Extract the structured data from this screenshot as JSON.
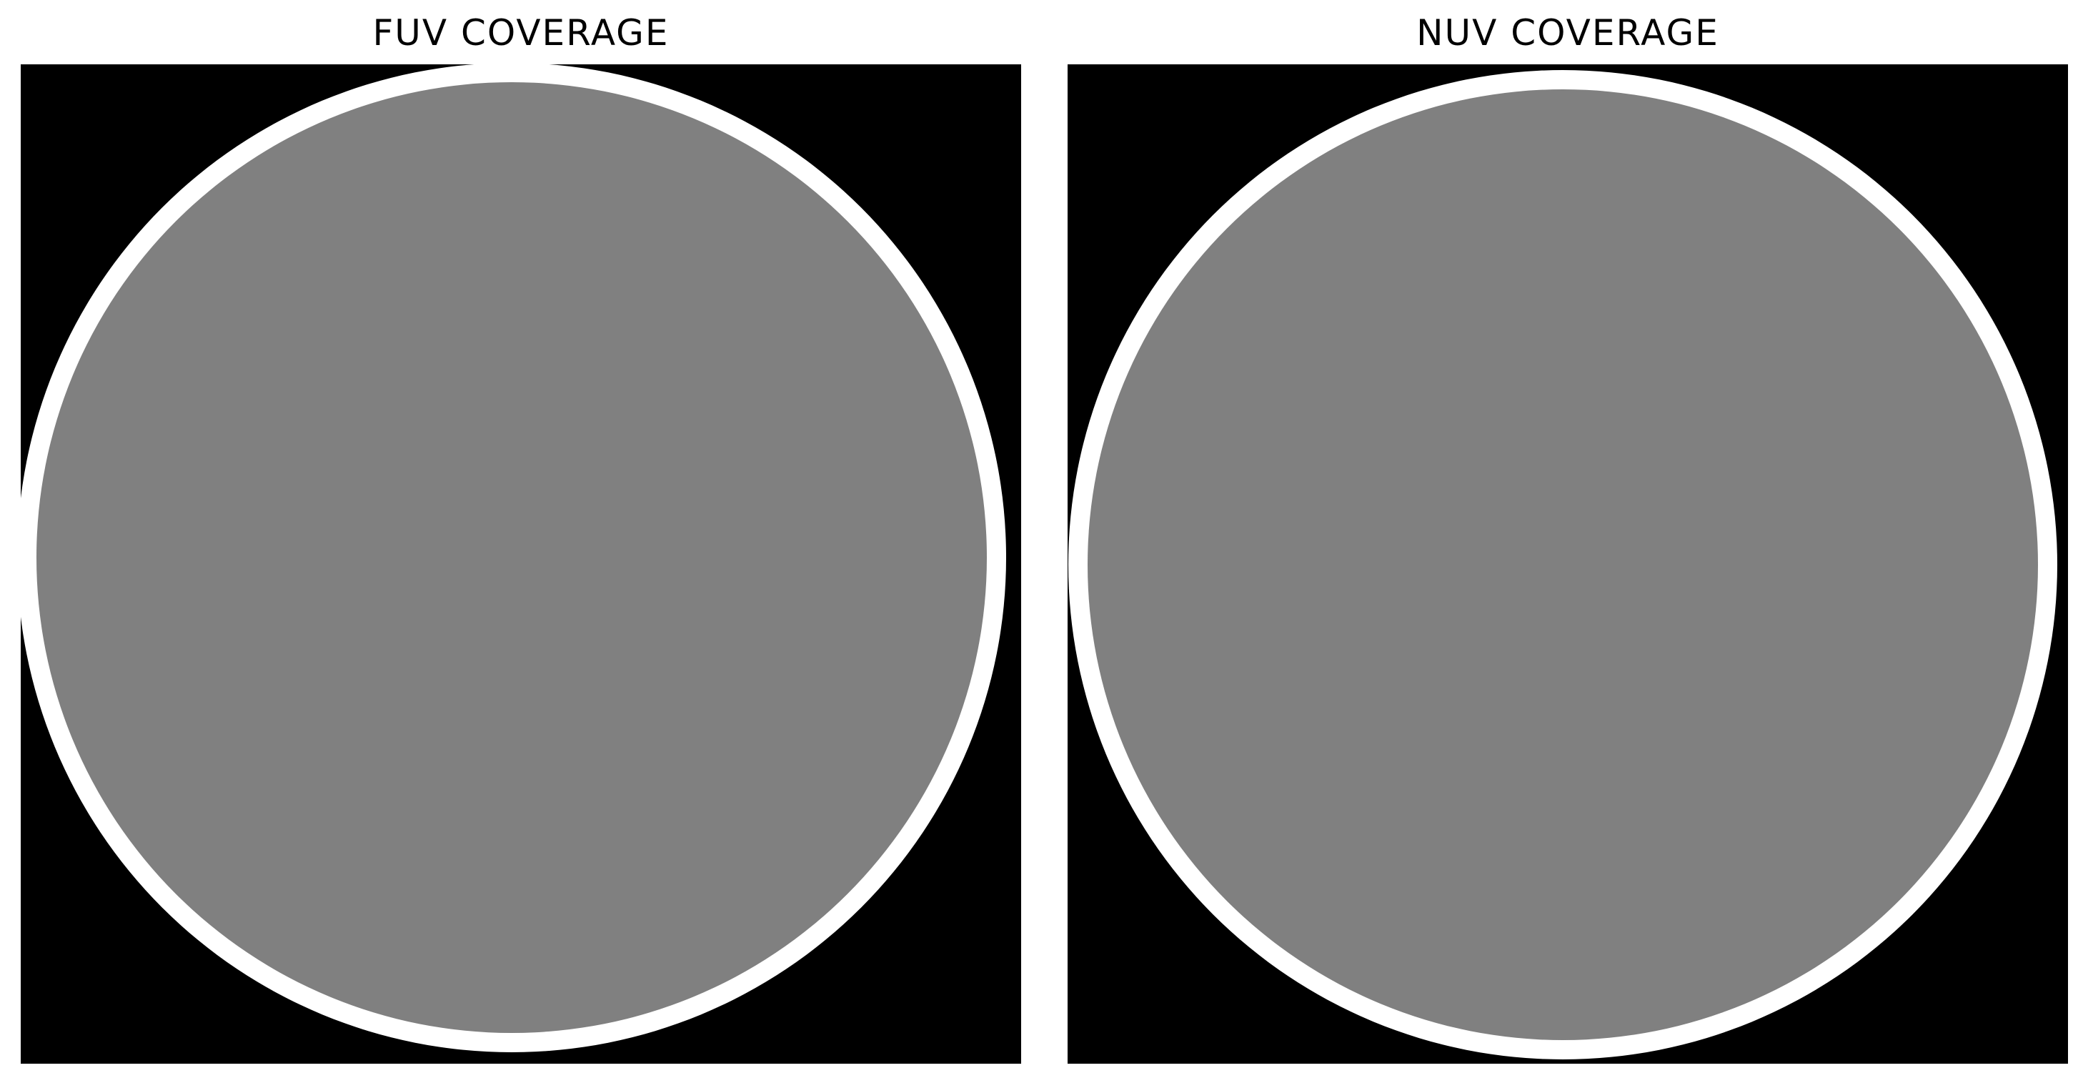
{
  "panels": [
    {
      "title": "FUV COVERAGE",
      "colors": {
        "background": "#000000",
        "ring": "#ffffff",
        "coverage": "#808080"
      }
    },
    {
      "title": "NUV COVERAGE",
      "colors": {
        "background": "#000000",
        "ring": "#ffffff",
        "coverage": "#808080"
      }
    }
  ]
}
